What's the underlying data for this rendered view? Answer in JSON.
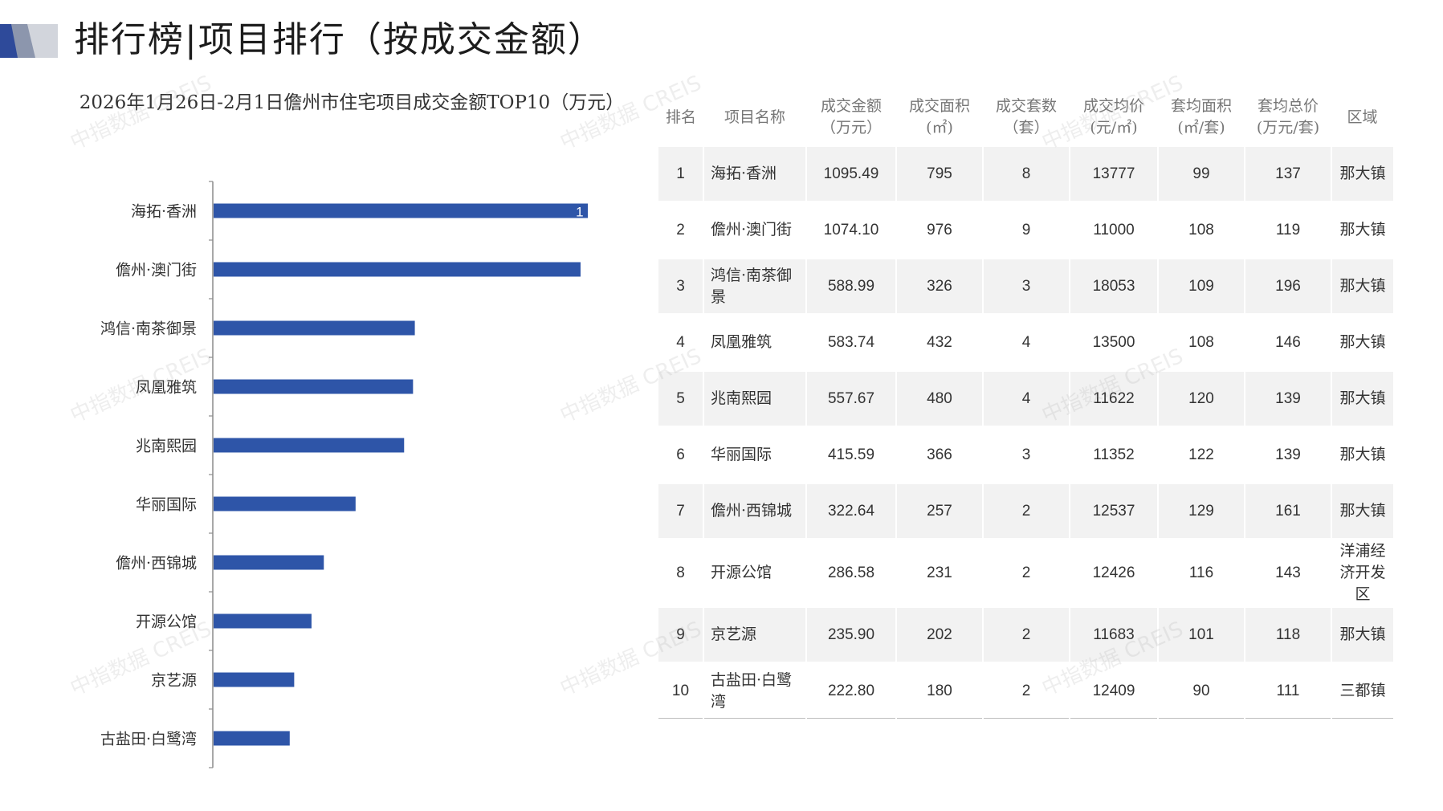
{
  "header": {
    "title": "排行榜|项目排行（按成交金额）"
  },
  "colors": {
    "bar": "#2e55a8",
    "stripe": "#f2f2f2"
  },
  "chart_data": {
    "type": "bar",
    "orientation": "horizontal",
    "title": "2026年1月26日-2月1日儋州市住宅项目成交金额TOP10（万元）",
    "categories": [
      "海拓·香洲",
      "儋州·澳门街",
      "鸿信·南茶御景",
      "凤凰雅筑",
      "兆南熙园",
      "华丽国际",
      "儋州·西锦城",
      "开源公馆",
      "京艺源",
      "古盐田·白鹭湾"
    ],
    "values": [
      1095.49,
      1074.1,
      588.99,
      583.74,
      557.67,
      415.59,
      322.64,
      286.58,
      235.9,
      222.8
    ],
    "visible_data_label": "1",
    "xlim": [
      0,
      1100
    ],
    "grid": false,
    "legend": "none"
  },
  "table": {
    "headers": [
      {
        "l1": "排名",
        "l2": ""
      },
      {
        "l1": "项目名称",
        "l2": ""
      },
      {
        "l1": "成交金额",
        "l2": "（万元）"
      },
      {
        "l1": "成交面积",
        "l2": "(㎡)"
      },
      {
        "l1": "成交套数",
        "l2": "（套）"
      },
      {
        "l1": "成交均价",
        "l2": "(元/㎡)"
      },
      {
        "l1": "套均面积",
        "l2": "(㎡/套)"
      },
      {
        "l1": "套均总价",
        "l2": "(万元/套)"
      },
      {
        "l1": "区域",
        "l2": ""
      }
    ],
    "rows": [
      {
        "rank": "1",
        "name": "海拓·香洲",
        "amount": "1095.49",
        "area": "795",
        "units": "8",
        "avg_price": "13777",
        "avg_area": "99",
        "avg_total": "137",
        "region": "那大镇"
      },
      {
        "rank": "2",
        "name": "儋州·澳门街",
        "amount": "1074.10",
        "area": "976",
        "units": "9",
        "avg_price": "11000",
        "avg_area": "108",
        "avg_total": "119",
        "region": "那大镇"
      },
      {
        "rank": "3",
        "name": "鸿信·南茶御景",
        "amount": "588.99",
        "area": "326",
        "units": "3",
        "avg_price": "18053",
        "avg_area": "109",
        "avg_total": "196",
        "region": "那大镇"
      },
      {
        "rank": "4",
        "name": "凤凰雅筑",
        "amount": "583.74",
        "area": "432",
        "units": "4",
        "avg_price": "13500",
        "avg_area": "108",
        "avg_total": "146",
        "region": "那大镇"
      },
      {
        "rank": "5",
        "name": "兆南熙园",
        "amount": "557.67",
        "area": "480",
        "units": "4",
        "avg_price": "11622",
        "avg_area": "120",
        "avg_total": "139",
        "region": "那大镇"
      },
      {
        "rank": "6",
        "name": "华丽国际",
        "amount": "415.59",
        "area": "366",
        "units": "3",
        "avg_price": "11352",
        "avg_area": "122",
        "avg_total": "139",
        "region": "那大镇"
      },
      {
        "rank": "7",
        "name": "儋州·西锦城",
        "amount": "322.64",
        "area": "257",
        "units": "2",
        "avg_price": "12537",
        "avg_area": "129",
        "avg_total": "161",
        "region": "那大镇"
      },
      {
        "rank": "8",
        "name": "开源公馆",
        "amount": "286.58",
        "area": "231",
        "units": "2",
        "avg_price": "12426",
        "avg_area": "116",
        "avg_total": "143",
        "region": "洋浦经济开发区"
      },
      {
        "rank": "9",
        "name": "京艺源",
        "amount": "235.90",
        "area": "202",
        "units": "2",
        "avg_price": "11683",
        "avg_area": "101",
        "avg_total": "118",
        "region": "那大镇"
      },
      {
        "rank": "10",
        "name": "古盐田·白鹭湾",
        "amount": "222.80",
        "area": "180",
        "units": "2",
        "avg_price": "12409",
        "avg_area": "90",
        "avg_total": "111",
        "region": "三都镇"
      }
    ]
  },
  "watermark": "中指数据 CREIS"
}
